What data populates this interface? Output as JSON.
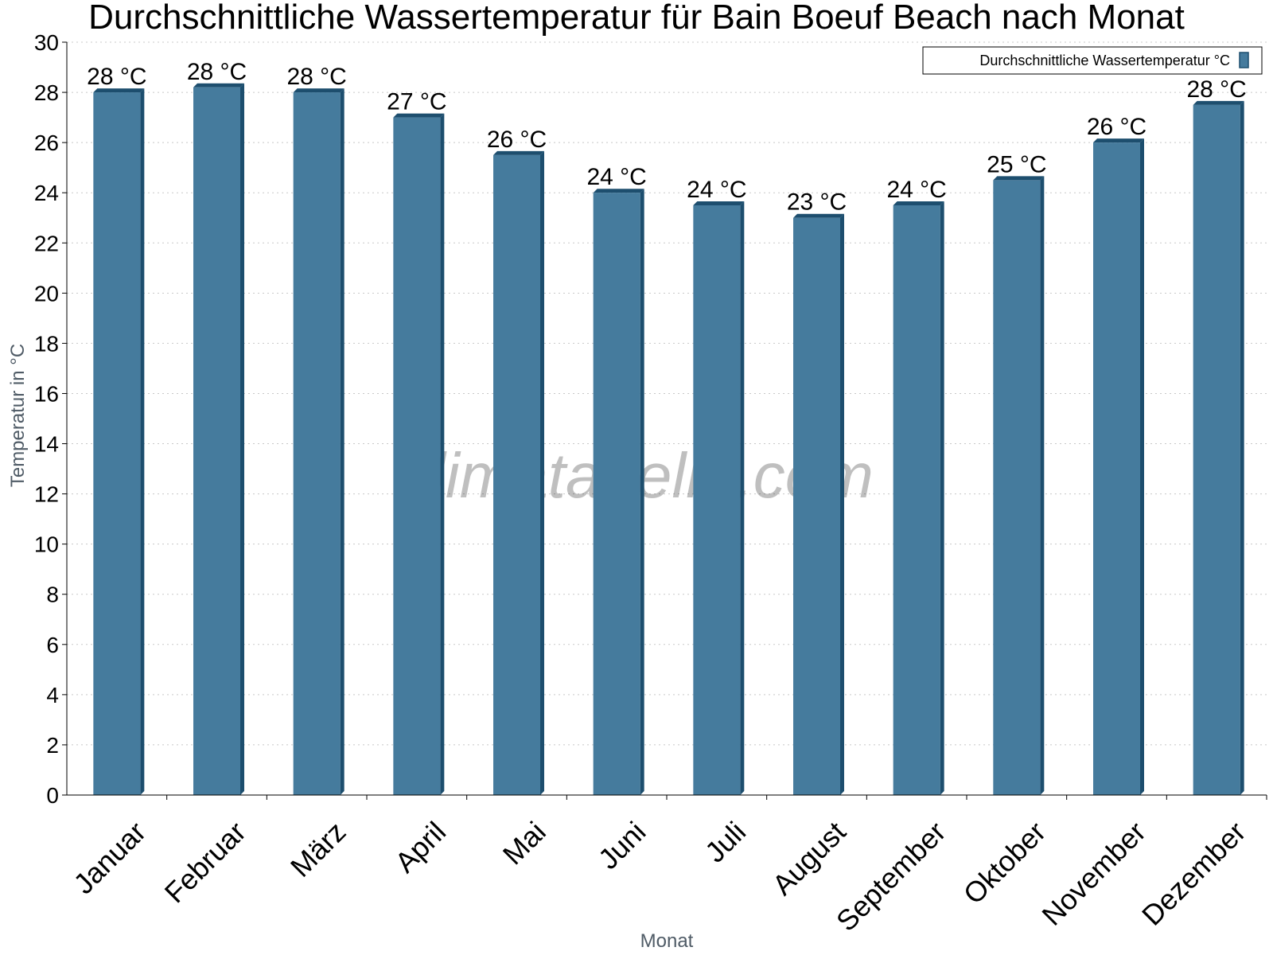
{
  "chart_data": {
    "type": "bar",
    "title": "Durchschnittliche Wassertemperatur für Bain Boeuf Beach nach Monat",
    "xlabel": "Monat",
    "ylabel": "Temperatur in °C",
    "ylim": [
      0,
      30
    ],
    "y_ticks": [
      "0",
      "2",
      "4",
      "6",
      "8",
      "10",
      "12",
      "14",
      "16",
      "18",
      "20",
      "22",
      "24",
      "26",
      "28",
      "30"
    ],
    "grid": true,
    "legend_position": "top-right",
    "categories": [
      "Januar",
      "Februar",
      "März",
      "April",
      "Mai",
      "Juni",
      "Juli",
      "August",
      "September",
      "Oktober",
      "November",
      "Dezember"
    ],
    "series": [
      {
        "name": "Durchschnittliche Wassertemperatur °C",
        "values": [
          28,
          28.2,
          28,
          27,
          25.5,
          24,
          23.5,
          23,
          23.5,
          24.5,
          26,
          27.5
        ],
        "labels": [
          "28 °C",
          "28 °C",
          "28 °C",
          "27 °C",
          "26 °C",
          "24 °C",
          "24 °C",
          "23 °C",
          "24 °C",
          "25 °C",
          "26 °C",
          "28 °C"
        ],
        "color": "#457b9d",
        "edge_color": "#1d4e6e"
      }
    ],
    "watermark": "klimatabelle.com"
  }
}
